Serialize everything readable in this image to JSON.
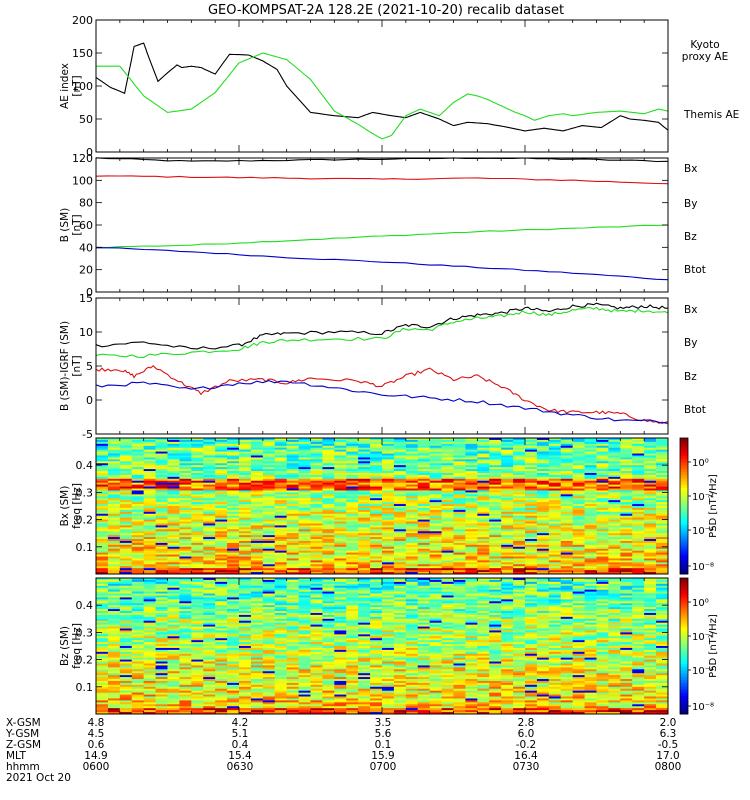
{
  "title": "GEO-KOMPSAT-2A 128.2E (2021-10-20) recalib dataset",
  "colors": {
    "black": "#000000",
    "green": "#22dd22",
    "red": "#dd1111",
    "blue": "#0000cc"
  },
  "chart_data": [
    {
      "type": "line",
      "ylabel_top": "AE index",
      "ylabel_bottom": "[nT]",
      "ylim": [
        0,
        200
      ],
      "yticks": [
        0,
        50,
        100,
        150,
        200
      ],
      "xlim": [
        0,
        120
      ],
      "series": [
        {
          "name": "Themis AE",
          "color": "#000000",
          "x": [
            0,
            3,
            6,
            8,
            10,
            11,
            13,
            15,
            17,
            18,
            20,
            22,
            25,
            28,
            32,
            35,
            38,
            40,
            45,
            50,
            55,
            58,
            62,
            65,
            68,
            72,
            75,
            78,
            82,
            86,
            90,
            94,
            98,
            102,
            106,
            110,
            112,
            115,
            118,
            120
          ],
          "y": [
            113,
            98,
            89,
            160,
            165,
            145,
            107,
            120,
            132,
            128,
            130,
            128,
            118,
            148,
            147,
            138,
            125,
            100,
            60,
            55,
            52,
            60,
            55,
            52,
            60,
            50,
            40,
            45,
            43,
            38,
            32,
            36,
            32,
            40,
            37,
            55,
            50,
            48,
            45,
            33
          ]
        },
        {
          "name": "Kyoto proxy AE",
          "color": "#22dd22",
          "x": [
            0,
            5,
            10,
            15,
            20,
            25,
            30,
            35,
            40,
            45,
            50,
            55,
            58,
            60,
            62,
            65,
            68,
            72,
            75,
            78,
            80,
            82,
            85,
            88,
            90,
            92,
            95,
            98,
            100,
            105,
            110,
            115,
            118,
            120
          ],
          "y": [
            130,
            130,
            85,
            60,
            65,
            90,
            135,
            150,
            140,
            110,
            62,
            42,
            28,
            20,
            25,
            55,
            65,
            55,
            75,
            88,
            85,
            80,
            70,
            60,
            55,
            48,
            55,
            58,
            55,
            60,
            62,
            58,
            65,
            62
          ]
        }
      ],
      "legend": [
        "Kyoto",
        "proxy AE",
        "Themis AE"
      ]
    },
    {
      "type": "line",
      "ylabel_top": "B (SM)",
      "ylabel_bottom": "[nT]",
      "ylim": [
        0,
        120
      ],
      "yticks": [
        0,
        20,
        40,
        60,
        80,
        100,
        120
      ],
      "xlim": [
        0,
        120
      ],
      "series": [
        {
          "name": "Bx",
          "color": "#000000",
          "x": [
            0,
            20,
            40,
            60,
            80,
            100,
            120
          ],
          "y": [
            120,
            117,
            118,
            119,
            120,
            119,
            117
          ]
        },
        {
          "name": "By",
          "color": "#22dd22",
          "x": [
            0,
            20,
            40,
            60,
            80,
            100,
            120
          ],
          "y": [
            40,
            42,
            46,
            50,
            54,
            57,
            60
          ]
        },
        {
          "name": "Bz",
          "color": "#dd1111",
          "x": [
            0,
            20,
            40,
            60,
            80,
            100,
            120
          ],
          "y": [
            104,
            103,
            102,
            101,
            102,
            100,
            97
          ]
        },
        {
          "name": "Btot",
          "color": "#0000cc",
          "x": [
            0,
            20,
            40,
            60,
            80,
            100,
            120
          ],
          "y": [
            40,
            36,
            31,
            27,
            22,
            17,
            11
          ]
        }
      ],
      "legend": [
        "Bx",
        "By",
        "Bz",
        "Btot"
      ]
    },
    {
      "type": "line",
      "ylabel_top": "B (SM)-IGRF (SM)",
      "ylabel_bottom": "[nT]",
      "ylim": [
        -5,
        15
      ],
      "yticks": [
        -5,
        0,
        5,
        10,
        15
      ],
      "xlim": [
        0,
        120
      ],
      "series": [
        {
          "name": "Bx",
          "color": "#000000",
          "x": [
            0,
            10,
            20,
            30,
            35,
            40,
            50,
            60,
            65,
            70,
            75,
            80,
            85,
            90,
            95,
            100,
            105,
            110,
            115,
            120
          ],
          "y": [
            8,
            8.5,
            7.5,
            8,
            9.5,
            9.8,
            10,
            9.8,
            11,
            10.8,
            12,
            12.5,
            12.8,
            13.5,
            13,
            13.8,
            14,
            13.5,
            13.8,
            13.5
          ]
        },
        {
          "name": "By",
          "color": "#22dd22",
          "x": [
            0,
            10,
            20,
            30,
            35,
            40,
            50,
            60,
            65,
            70,
            75,
            80,
            85,
            90,
            95,
            100,
            105,
            110,
            115,
            120
          ],
          "y": [
            6.5,
            6.5,
            7,
            7.5,
            8.5,
            8.8,
            9,
            9,
            10.5,
            10.3,
            11.5,
            12,
            12.3,
            13,
            12.5,
            13.2,
            13.5,
            13,
            13.2,
            12.8
          ]
        },
        {
          "name": "Bz",
          "color": "#dd1111",
          "x": [
            0,
            5,
            8,
            12,
            18,
            22,
            28,
            35,
            40,
            45,
            55,
            60,
            65,
            70,
            75,
            80,
            85,
            90,
            95,
            100,
            105,
            110,
            115,
            120
          ],
          "y": [
            4.5,
            4.5,
            3.5,
            5,
            2.5,
            1,
            2.8,
            3,
            2.5,
            3.2,
            2.8,
            2,
            3.5,
            4.5,
            3,
            3.5,
            2,
            0,
            -1.5,
            -1.8,
            -1.8,
            -2,
            -3,
            -3.5
          ]
        },
        {
          "name": "Btot",
          "color": "#0000cc",
          "x": [
            0,
            10,
            20,
            30,
            40,
            50,
            60,
            70,
            80,
            90,
            100,
            110,
            120
          ],
          "y": [
            2,
            2.5,
            1.5,
            2.5,
            2.8,
            1.8,
            0.8,
            0.3,
            -0.2,
            -1.2,
            -2.2,
            -3,
            -3.2
          ]
        }
      ],
      "legend": [
        "Bx",
        "By",
        "Bz",
        "Btot"
      ]
    },
    {
      "type": "heatmap",
      "ylabel_top": "Bx (SM)",
      "ylabel_bottom": "freq [Hz]",
      "ylim": [
        0,
        0.5
      ],
      "yticks": [
        0.1,
        0.2,
        0.3,
        0.4
      ],
      "xlim": [
        0,
        120
      ],
      "colorbar": {
        "label": "PSD [nT²/Hz]",
        "ticks": [
          "10⁰",
          "10⁻²",
          "10⁻⁴",
          "10⁻⁸"
        ]
      }
    },
    {
      "type": "heatmap",
      "ylabel_top": "Bz (SM)",
      "ylabel_bottom": "freq [Hz]",
      "ylim": [
        0,
        0.5
      ],
      "yticks": [
        0.1,
        0.2,
        0.3,
        0.4
      ],
      "xlim": [
        0,
        120
      ],
      "colorbar": {
        "label": "PSD [nT²/Hz]",
        "ticks": [
          "10⁰",
          "10⁻²",
          "10⁻⁴",
          "10⁻⁸"
        ]
      }
    }
  ],
  "ephemeris": {
    "labels": [
      "X-GSM",
      "Y-GSM",
      "Z-GSM",
      "MLT",
      "hhmm",
      "2021 Oct 20"
    ],
    "columns": [
      [
        "4.8",
        "4.5",
        "0.6",
        "14.9",
        "0600"
      ],
      [
        "4.2",
        "5.1",
        "0.4",
        "15.4",
        "0630"
      ],
      [
        "3.5",
        "5.6",
        "0.1",
        "15.9",
        "0700"
      ],
      [
        "2.8",
        "6.0",
        "-0.2",
        "16.4",
        "0730"
      ],
      [
        "2.0",
        "6.3",
        "-0.5",
        "17.0",
        "0800"
      ]
    ]
  }
}
